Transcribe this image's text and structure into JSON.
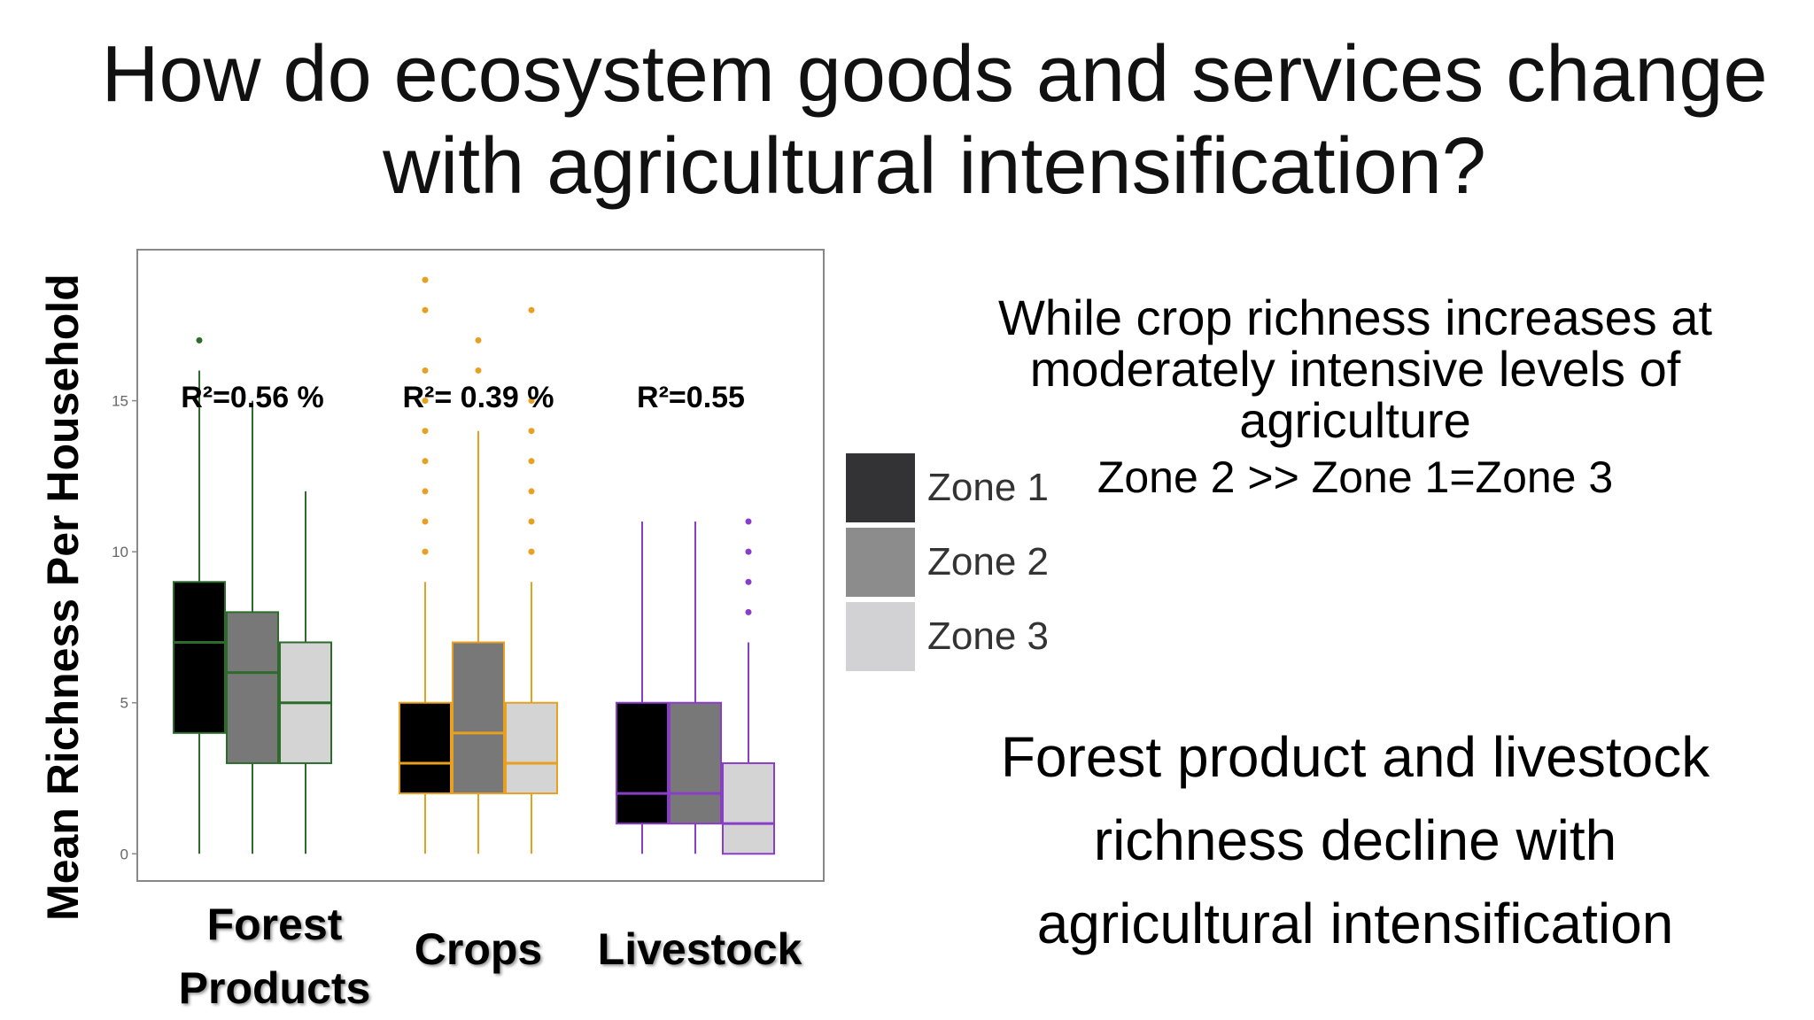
{
  "title": {
    "line1": "How do ecosystem goods and services change",
    "line2": "with agricultural intensification?"
  },
  "chart_data": {
    "type": "box",
    "ylabel": "Mean Richness Per Household",
    "yticks": [
      0,
      5,
      10,
      15
    ],
    "ylim": [
      -0.9,
      20
    ],
    "categories": [
      {
        "label_lines": [
          "Forest",
          "Products"
        ],
        "color": "#2d6b2d",
        "r2": "R²=0.56 %",
        "boxes": [
          {
            "zone": "Zone 1",
            "min": 0,
            "q1": 4,
            "median": 7,
            "q3": 9,
            "max": 16,
            "outliers": [
              17
            ]
          },
          {
            "zone": "Zone 2",
            "min": 0,
            "q1": 3,
            "median": 6,
            "q3": 8,
            "max": 15,
            "outliers": []
          },
          {
            "zone": "Zone 3",
            "min": 0,
            "q1": 3,
            "median": 5,
            "q3": 7,
            "max": 12,
            "outliers": []
          }
        ]
      },
      {
        "label_lines": [
          "Crops"
        ],
        "color": "#e8a020",
        "r2": "R²= 0.39 %",
        "boxes": [
          {
            "zone": "Zone 1",
            "min": 0,
            "q1": 2,
            "median": 3,
            "q3": 5,
            "max": 9,
            "outliers": [
              10,
              11,
              12,
              13,
              14,
              15,
              16,
              18,
              19
            ]
          },
          {
            "zone": "Zone 2",
            "min": 0,
            "q1": 2,
            "median": 4,
            "q3": 7,
            "max": 14,
            "outliers": [
              16,
              17
            ]
          },
          {
            "zone": "Zone 3",
            "min": 0,
            "q1": 2,
            "median": 3,
            "q3": 5,
            "max": 9,
            "outliers": [
              10,
              11,
              12,
              13,
              14,
              15,
              18
            ]
          }
        ]
      },
      {
        "label_lines": [
          "Livestock"
        ],
        "color": "#8a3ec8",
        "r2": "R²=0.55",
        "boxes": [
          {
            "zone": "Zone 1",
            "min": 0,
            "q1": 1,
            "median": 2,
            "q3": 5,
            "max": 11,
            "outliers": []
          },
          {
            "zone": "Zone 2",
            "min": 0,
            "q1": 1,
            "median": 2,
            "q3": 5,
            "max": 11,
            "outliers": []
          },
          {
            "zone": "Zone 3",
            "min": 0,
            "q1": 0,
            "median": 1,
            "q3": 3,
            "max": 7,
            "outliers": [
              8,
              9,
              10,
              11
            ]
          }
        ]
      }
    ],
    "legend": [
      {
        "label": "Zone 1",
        "color": "#333336"
      },
      {
        "label": "Zone 2",
        "color": "#8c8c8c"
      },
      {
        "label": "Zone 3",
        "color": "#d2d2d4"
      }
    ],
    "box_fills": [
      "#000000",
      "#787878",
      "#d4d4d4"
    ]
  },
  "notes": {
    "first": [
      "While crop richness increases at",
      "moderately intensive levels of",
      "agriculture"
    ],
    "first_sub": "Zone 2 >> Zone 1=Zone 3",
    "second": [
      "Forest product and livestock",
      "richness decline with",
      "agricultural intensification"
    ]
  }
}
